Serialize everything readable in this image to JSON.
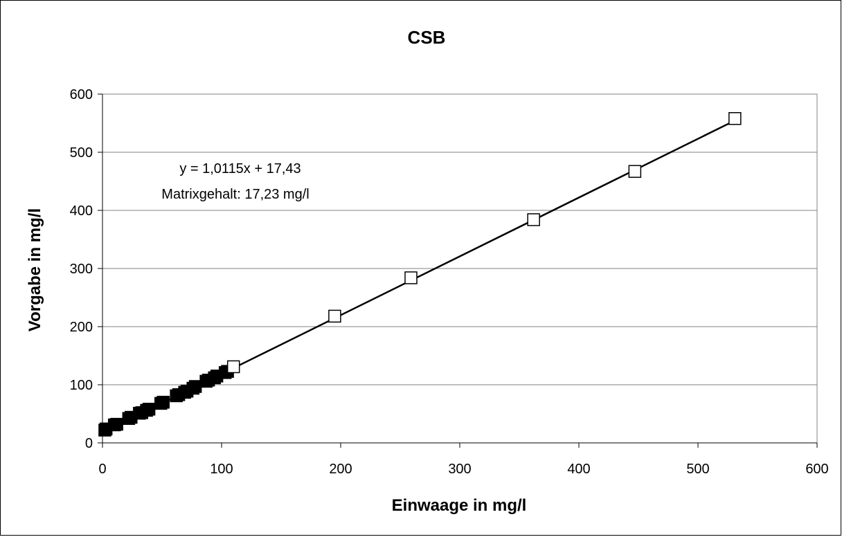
{
  "chart_data": {
    "type": "scatter",
    "title": "CSB",
    "xlabel": "Einwaage in mg/l",
    "ylabel": "Vorgabe in mg/l",
    "xlim": [
      0,
      600
    ],
    "ylim": [
      0,
      600
    ],
    "xticks": [
      0,
      100,
      200,
      300,
      400,
      500,
      600
    ],
    "yticks": [
      0,
      100,
      200,
      300,
      400,
      500,
      600
    ],
    "grid": "horizontal",
    "legend": "none",
    "series": [
      {
        "marker": "filled-square",
        "color": "#000000",
        "points": [
          [
            2,
            22
          ],
          [
            3,
            24
          ],
          [
            10,
            31
          ],
          [
            12,
            32
          ],
          [
            22,
            42
          ],
          [
            24,
            44
          ],
          [
            31,
            51
          ],
          [
            33,
            52
          ],
          [
            37,
            56
          ],
          [
            39,
            58
          ],
          [
            49,
            68
          ],
          [
            51,
            70
          ],
          [
            62,
            81
          ],
          [
            64,
            83
          ],
          [
            69,
            87
          ],
          [
            71,
            89
          ],
          [
            76,
            94
          ],
          [
            78,
            97
          ],
          [
            87,
            106
          ],
          [
            89,
            108
          ],
          [
            94,
            112
          ],
          [
            96,
            115
          ],
          [
            103,
            121
          ],
          [
            105,
            123
          ]
        ]
      },
      {
        "marker": "open-square",
        "color": "#000000",
        "points": [
          [
            110,
            131
          ],
          [
            195,
            218
          ],
          [
            259,
            284
          ],
          [
            362,
            384
          ],
          [
            447,
            467
          ],
          [
            531,
            558
          ]
        ]
      }
    ],
    "trendline": {
      "slope": 1.0115,
      "intercept": 17.43,
      "x_range": [
        2,
        531
      ],
      "color": "#000000"
    },
    "annotations": [
      "y = 1,0115x + 17,43",
      "Matrixgehalt: 17,23 mg/l"
    ]
  }
}
